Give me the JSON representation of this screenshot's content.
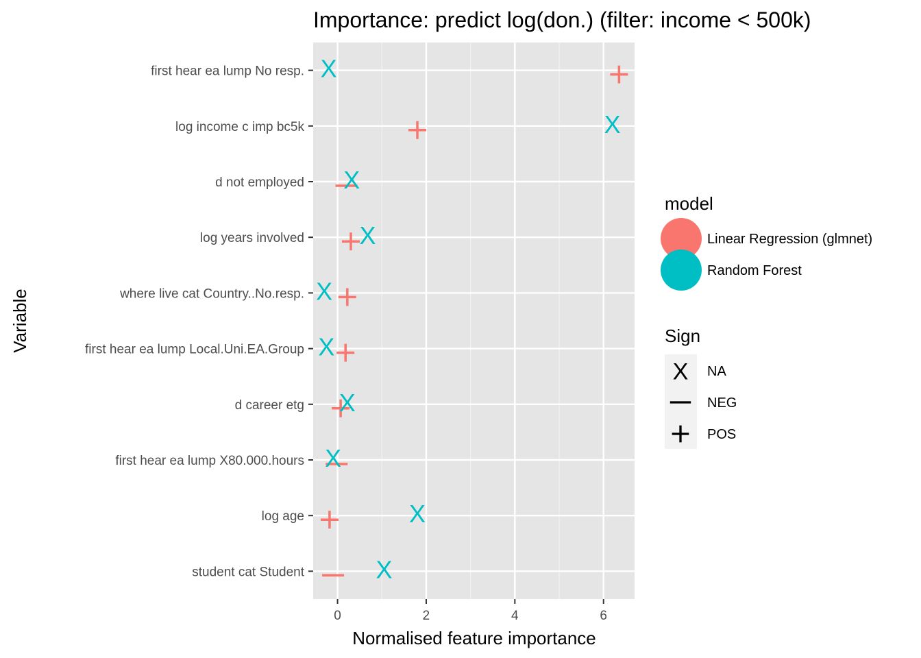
{
  "chart_data": {
    "type": "scatter",
    "title": "Importance: predict log(don.) (filter: income < 500k)",
    "xlabel": "Normalised feature importance",
    "ylabel": "Variable",
    "xlim": [
      -0.55,
      6.7
    ],
    "x_ticks": [
      0,
      2,
      4,
      6
    ],
    "grid": true,
    "panel_background": "#e5e5e5",
    "categories": [
      "first hear ea lump No resp.",
      "log income c imp bc5k",
      "d not employed",
      "log years involved",
      "where live cat Country..No.resp.",
      "first hear ea lump Local.Uni.EA.Group",
      "d career etg",
      "first hear ea lump X80.000.hours",
      "log age",
      "student cat Student"
    ],
    "series": [
      {
        "name": "Linear Regression (glmnet)",
        "color": "#f8766d",
        "points": [
          {
            "category": "first hear ea lump No resp.",
            "value": 6.35,
            "sign": "POS"
          },
          {
            "category": "log income c imp bc5k",
            "value": 1.8,
            "sign": "POS"
          },
          {
            "category": "d not employed",
            "value": 0.2,
            "sign": "NEG"
          },
          {
            "category": "log years involved",
            "value": 0.3,
            "sign": "POS"
          },
          {
            "category": "where live cat Country..No.resp.",
            "value": 0.22,
            "sign": "POS"
          },
          {
            "category": "first hear ea lump Local.Uni.EA.Group",
            "value": 0.18,
            "sign": "POS"
          },
          {
            "category": "d career etg",
            "value": 0.07,
            "sign": "POS"
          },
          {
            "category": "first hear ea lump X80.000.hours",
            "value": -0.02,
            "sign": "NEG"
          },
          {
            "category": "log age",
            "value": -0.18,
            "sign": "POS"
          },
          {
            "category": "student cat Student",
            "value": -0.1,
            "sign": "NEG"
          }
        ]
      },
      {
        "name": "Random Forest",
        "color": "#00bfc4",
        "points": [
          {
            "category": "first hear ea lump No resp.",
            "value": -0.2,
            "sign": "NA"
          },
          {
            "category": "log income c imp bc5k",
            "value": 6.2,
            "sign": "NA"
          },
          {
            "category": "d not employed",
            "value": 0.32,
            "sign": "NA"
          },
          {
            "category": "log years involved",
            "value": 0.68,
            "sign": "NA"
          },
          {
            "category": "where live cat Country..No.resp.",
            "value": -0.3,
            "sign": "NA"
          },
          {
            "category": "first hear ea lump Local.Uni.EA.Group",
            "value": -0.25,
            "sign": "NA"
          },
          {
            "category": "d career etg",
            "value": 0.22,
            "sign": "NA"
          },
          {
            "category": "first hear ea lump X80.000.hours",
            "value": -0.1,
            "sign": "NA"
          },
          {
            "category": "log age",
            "value": 1.8,
            "sign": "NA"
          },
          {
            "category": "student cat Student",
            "value": 1.05,
            "sign": "NA"
          }
        ]
      }
    ],
    "legend": {
      "placement": "right",
      "model_title": "model",
      "sign_title": "Sign",
      "sign_entries": [
        {
          "symbol": "X",
          "label": "NA"
        },
        {
          "symbol": "—",
          "label": "NEG"
        },
        {
          "symbol": "+",
          "label": "POS"
        }
      ]
    }
  }
}
